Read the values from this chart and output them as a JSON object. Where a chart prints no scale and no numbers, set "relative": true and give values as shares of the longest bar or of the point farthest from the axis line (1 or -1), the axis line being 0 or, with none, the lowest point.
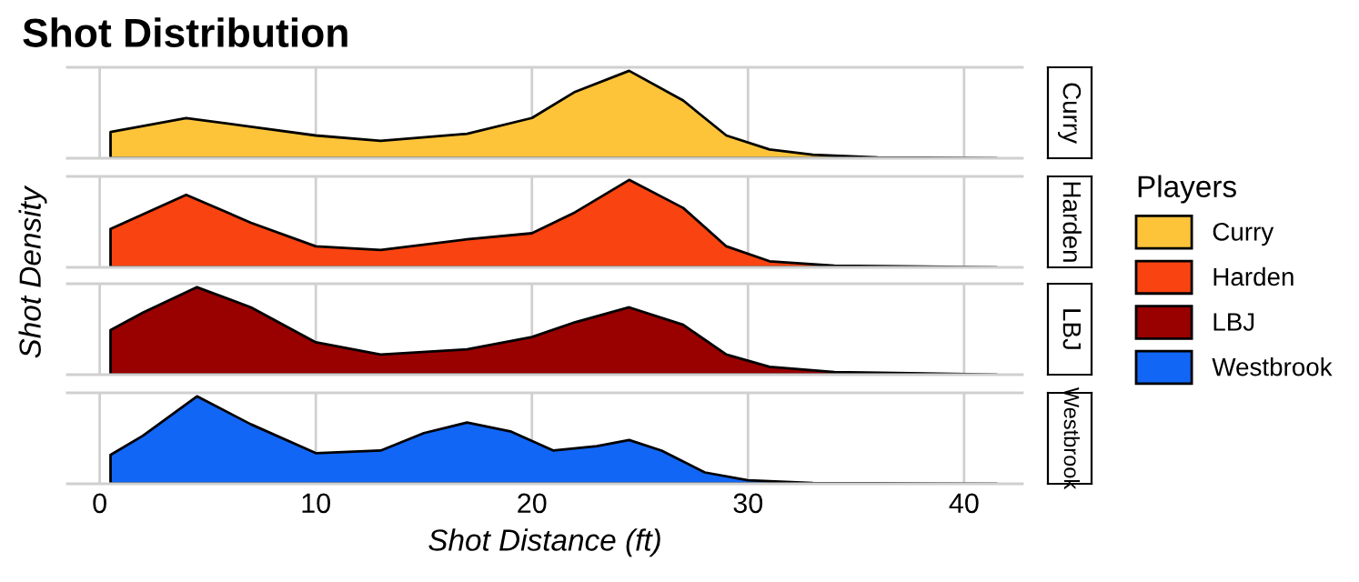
{
  "chart_data": [
    {
      "type": "area",
      "title": "Shot Distribution",
      "ylabel": "Shot Density",
      "legend": "right",
      "legend_title": "Players",
      "relative": true,
      "grid": "x",
      "tick_labels": false,
      "xlim": [
        -1.5,
        42.7
      ],
      "xticks": [
        0,
        10,
        20,
        30,
        40
      ],
      "x": [
        0.5,
        4,
        7,
        10,
        13,
        17,
        20,
        22,
        24.5,
        27,
        29,
        31,
        33,
        36,
        41.5
      ],
      "series": [
        {
          "name": "Curry",
          "color": "#fdc43a",
          "values": [
            0.3,
            0.46,
            0.36,
            0.26,
            0.2,
            0.28,
            0.46,
            0.76,
            1,
            0.66,
            0.26,
            0.1,
            0.04,
            0.01,
            0
          ]
        }
      ]
    },
    {
      "type": "area",
      "relative": true,
      "grid": "x",
      "tick_labels": false,
      "xlim": [
        -1.5,
        42.7
      ],
      "xticks": [
        0,
        10,
        20,
        30,
        40
      ],
      "x": [
        0.5,
        4,
        7,
        10,
        13,
        17,
        20,
        22,
        24.5,
        27,
        29,
        31,
        34,
        41.5
      ],
      "series": [
        {
          "name": "Harden",
          "color": "#f94310",
          "values": [
            0.44,
            0.83,
            0.51,
            0.24,
            0.2,
            0.32,
            0.39,
            0.63,
            1,
            0.68,
            0.24,
            0.07,
            0.02,
            0
          ]
        }
      ]
    },
    {
      "type": "area",
      "relative": true,
      "grid": "x",
      "tick_labels": false,
      "xlim": [
        -1.5,
        42.7
      ],
      "xticks": [
        0,
        10,
        20,
        30,
        40
      ],
      "x": [
        0.5,
        2,
        4.5,
        7,
        10,
        13,
        17,
        20,
        22,
        24.5,
        27,
        29,
        31,
        34,
        41.5
      ],
      "series": [
        {
          "name": "LBJ",
          "color": "#990000",
          "values": [
            0.51,
            0.71,
            1,
            0.77,
            0.37,
            0.23,
            0.29,
            0.43,
            0.6,
            0.77,
            0.57,
            0.23,
            0.09,
            0.03,
            0
          ]
        }
      ]
    },
    {
      "type": "area",
      "relative": true,
      "grid": "x",
      "tick_labels": "x",
      "xlabel": "Shot Distance (ft)",
      "xlim": [
        -1.5,
        42.7
      ],
      "xticks": [
        0,
        10,
        20,
        30,
        40
      ],
      "x": [
        0.5,
        2,
        4.5,
        7,
        10,
        13,
        15,
        17,
        19,
        21,
        23,
        24.5,
        26,
        28,
        30,
        33,
        41.5
      ],
      "series": [
        {
          "name": "Westbrook",
          "color": "#1266f5",
          "values": [
            0.33,
            0.55,
            1,
            0.68,
            0.35,
            0.38,
            0.58,
            0.7,
            0.6,
            0.38,
            0.43,
            0.5,
            0.38,
            0.13,
            0.04,
            0.01,
            0
          ]
        }
      ]
    }
  ]
}
